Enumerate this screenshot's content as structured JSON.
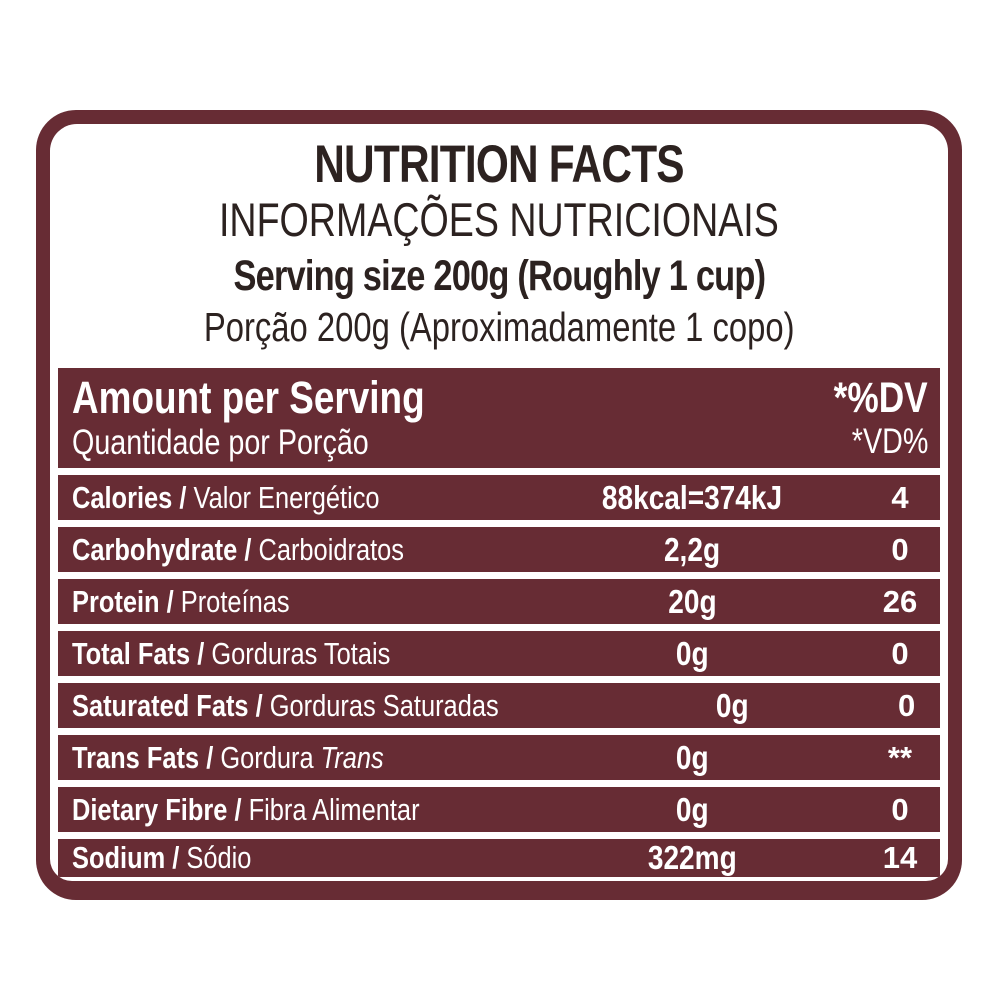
{
  "label": {
    "title": "NUTRITION FACTS",
    "subtitle": "INFORMAÇÕES NUTRICIONAIS",
    "serving_en": "Serving size 200g (Roughly 1 cup)",
    "serving_pt": "Porção 200g (Aproximadamente 1 copo)",
    "colors": {
      "maroon": "#672c34",
      "background": "#ffffff",
      "header_text": "#2c2220",
      "table_text": "#ffffff"
    },
    "table_header": {
      "amount_en": "Amount per Serving",
      "amount_pt": "Quantidade por Porção",
      "dv_en": "*%DV",
      "dv_pt": "*VD%"
    },
    "rows": [
      {
        "name_en": "Calories",
        "name_pt": "Valor Energético",
        "value": "88kcal=374kJ",
        "dv": "4"
      },
      {
        "name_en": "Carbohydrate",
        "name_pt": "Carboidratos",
        "value": "2,2g",
        "dv": "0"
      },
      {
        "name_en": "Protein",
        "name_pt": "Proteínas",
        "value": "20g",
        "dv": "26"
      },
      {
        "name_en": "Total Fats",
        "name_pt": "Gorduras Totais",
        "value": "0g",
        "dv": "0"
      },
      {
        "name_en": "Saturated Fats",
        "name_pt": "Gorduras Saturadas",
        "value": "0g",
        "dv": "0"
      },
      {
        "name_en": "Trans Fats",
        "name_pt": "Gordura",
        "name_pt_italic": "Trans",
        "value": "0g",
        "dv": "**"
      },
      {
        "name_en": "Dietary Fibre",
        "name_pt": "Fibra Alimentar",
        "value": "0g",
        "dv": "0"
      },
      {
        "name_en": "Sodium",
        "name_pt": "Sódio",
        "value": "322mg",
        "dv": "14"
      }
    ]
  }
}
